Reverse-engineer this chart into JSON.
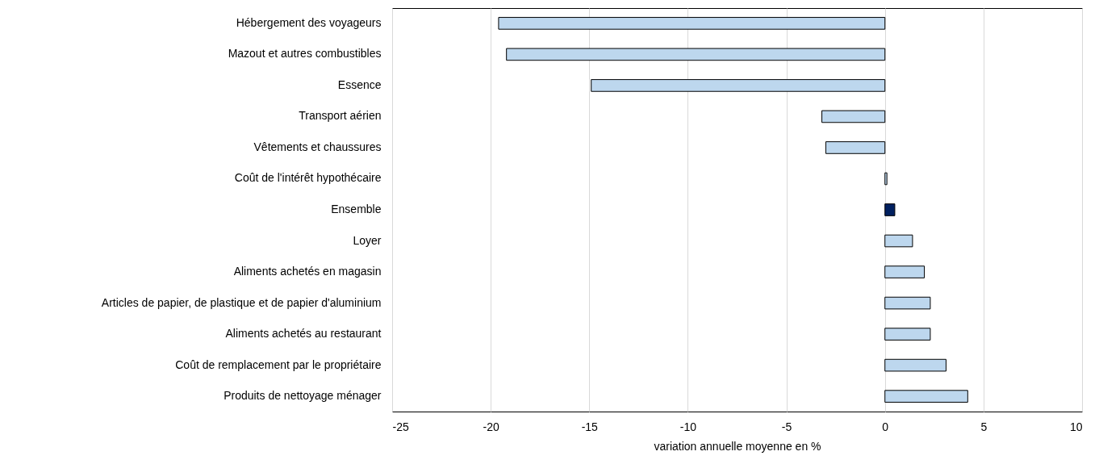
{
  "chart_data": {
    "type": "bar",
    "orientation": "horizontal",
    "xlabel": "variation annuelle moyenne en %",
    "categories": [
      "Hébergement des voyageurs",
      "Mazout et autres combustibles",
      "Essence",
      "Transport aérien",
      "Vêtements et chaussures",
      "Coût de l'intérêt hypothécaire",
      "Ensemble",
      "Loyer",
      "Aliments achetés en magasin",
      "Articles de papier, de plastique et de papier d'aluminium",
      "Aliments achetés au restaurant",
      "Coût de remplacement par le propriétaire",
      "Produits de nettoyage ménager"
    ],
    "values": [
      -19.6,
      -19.2,
      -14.9,
      -3.2,
      -3.0,
      0.1,
      0.5,
      1.4,
      2.0,
      2.3,
      2.3,
      3.1,
      4.2
    ],
    "colors": [
      "#bdd7ee",
      "#bdd7ee",
      "#bdd7ee",
      "#bdd7ee",
      "#bdd7ee",
      "#bdd7ee",
      "#002060",
      "#bdd7ee",
      "#bdd7ee",
      "#bdd7ee",
      "#bdd7ee",
      "#bdd7ee",
      "#bdd7ee"
    ],
    "xlim": [
      -25,
      10
    ],
    "xticks": [
      -25,
      -20,
      -15,
      -10,
      -5,
      0,
      5,
      10
    ],
    "grid": "x"
  }
}
